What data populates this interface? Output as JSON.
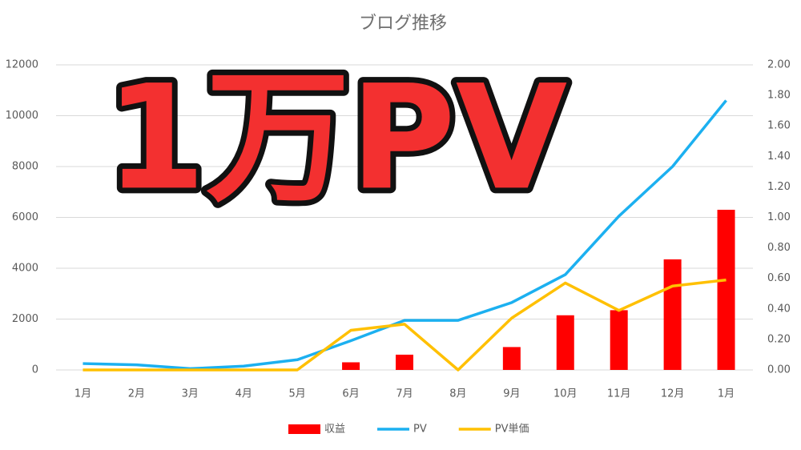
{
  "chart_data": {
    "type": "combo",
    "title": "ブログ推移",
    "annotation": "1万PV",
    "categories": [
      "1月",
      "2月",
      "3月",
      "4月",
      "5月",
      "6月",
      "7月",
      "8月",
      "9月",
      "10月",
      "11月",
      "12月",
      "1月"
    ],
    "series": [
      {
        "name": "収益",
        "type": "bar",
        "color": "#ff0000",
        "values": [
          0,
          0,
          0,
          0,
          0,
          300,
          600,
          0,
          900,
          2150,
          2350,
          4350,
          6300
        ]
      },
      {
        "name": "PV",
        "type": "line",
        "color": "#1cb0f0",
        "values": [
          250,
          200,
          50,
          150,
          400,
          1150,
          1950,
          1950,
          2650,
          3750,
          6050,
          8000,
          10600
        ]
      },
      {
        "name": "PV単価",
        "type": "line",
        "axis": "y2",
        "color": "#ffc000",
        "values": [
          0,
          0,
          0,
          0,
          0,
          0.26,
          0.3,
          0,
          0.34,
          0.57,
          0.39,
          0.55,
          0.59
        ]
      }
    ],
    "ylim": [
      0,
      12000
    ],
    "yticks": [
      0,
      2000,
      4000,
      6000,
      8000,
      10000,
      12000
    ],
    "y2lim": [
      0,
      2
    ],
    "y2ticks": [
      {
        "value": 0,
        "label": "0.00"
      },
      {
        "value": 0.2,
        "label": "0.20"
      },
      {
        "value": 0.4,
        "label": "0.40"
      },
      {
        "value": 0.6,
        "label": "0.60"
      },
      {
        "value": 0.8,
        "label": "0.80"
      },
      {
        "value": 1,
        "label": "1.00"
      },
      {
        "value": 1.2,
        "label": "1.20"
      },
      {
        "value": 1.4,
        "label": "1.40"
      },
      {
        "value": 1.6,
        "label": "1.60"
      },
      {
        "value": 1.8,
        "label": "1.80"
      },
      {
        "value": 2,
        "label": "2.00"
      }
    ],
    "grid": true,
    "legend": "bottom"
  }
}
